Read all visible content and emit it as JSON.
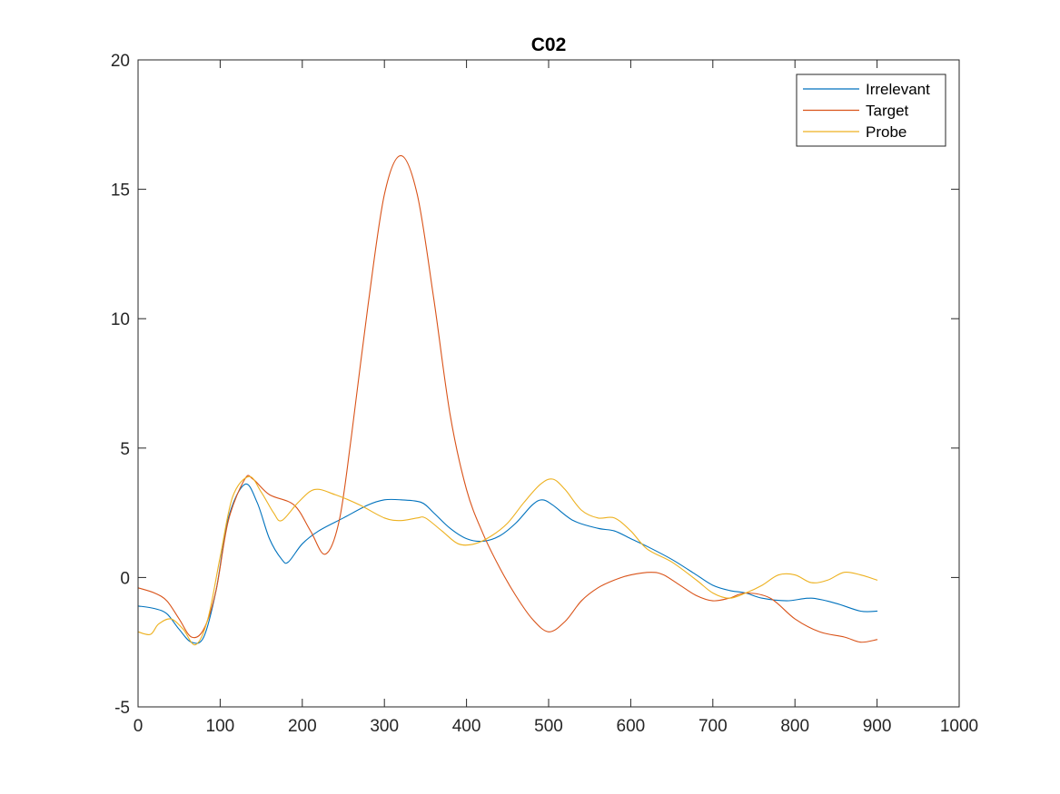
{
  "chart_data": {
    "type": "line",
    "title": "C02",
    "xlabel": "",
    "ylabel": "",
    "xlim": [
      0,
      1000
    ],
    "ylim": [
      -5,
      20
    ],
    "xticks": [
      0,
      100,
      200,
      300,
      400,
      500,
      600,
      700,
      800,
      900,
      1000
    ],
    "yticks": [
      -5,
      0,
      5,
      10,
      15,
      20
    ],
    "grid": false,
    "legend_position": "top-right",
    "series": [
      {
        "name": "Irrelevant",
        "color": "#0072BD",
        "x": [
          0,
          20,
          35,
          50,
          65,
          80,
          95,
          110,
          130,
          145,
          160,
          175,
          183,
          200,
          220,
          250,
          280,
          300,
          320,
          345,
          360,
          380,
          400,
          420,
          440,
          460,
          480,
          492,
          505,
          530,
          560,
          580,
          600,
          620,
          650,
          680,
          700,
          720,
          740,
          760,
          790,
          820,
          850,
          880,
          900
        ],
        "y": [
          -1.1,
          -1.2,
          -1.4,
          -2.0,
          -2.5,
          -2.3,
          -0.5,
          2.3,
          3.6,
          2.9,
          1.5,
          0.7,
          0.6,
          1.3,
          1.8,
          2.3,
          2.8,
          3.0,
          3.0,
          2.9,
          2.5,
          1.9,
          1.5,
          1.4,
          1.6,
          2.1,
          2.8,
          3.0,
          2.8,
          2.2,
          1.9,
          1.8,
          1.5,
          1.2,
          0.7,
          0.1,
          -0.3,
          -0.5,
          -0.6,
          -0.8,
          -0.9,
          -0.8,
          -1.0,
          -1.3,
          -1.3
        ]
      },
      {
        "name": "Target",
        "color": "#D95319",
        "x": [
          0,
          20,
          35,
          50,
          65,
          80,
          95,
          110,
          130,
          140,
          160,
          190,
          210,
          228,
          245,
          260,
          280,
          300,
          320,
          340,
          360,
          380,
          400,
          420,
          440,
          460,
          480,
          500,
          520,
          540,
          560,
          580,
          600,
          625,
          640,
          660,
          680,
          700,
          720,
          740,
          770,
          800,
          830,
          860,
          880,
          900
        ],
        "y": [
          -0.4,
          -0.6,
          -0.9,
          -1.6,
          -2.3,
          -2.0,
          -0.5,
          2.2,
          3.8,
          3.8,
          3.2,
          2.8,
          1.8,
          0.9,
          2.2,
          5.5,
          10.5,
          14.8,
          16.3,
          14.8,
          10.8,
          6.3,
          3.4,
          1.7,
          0.4,
          -0.7,
          -1.6,
          -2.1,
          -1.7,
          -0.9,
          -0.4,
          -0.1,
          0.1,
          0.2,
          0.1,
          -0.3,
          -0.7,
          -0.9,
          -0.8,
          -0.6,
          -0.8,
          -1.6,
          -2.1,
          -2.3,
          -2.5,
          -2.4
        ]
      },
      {
        "name": "Probe",
        "color": "#EDB120",
        "x": [
          0,
          15,
          25,
          40,
          55,
          70,
          85,
          100,
          115,
          135,
          150,
          165,
          175,
          195,
          215,
          240,
          270,
          300,
          320,
          340,
          350,
          370,
          390,
          410,
          430,
          450,
          470,
          490,
          505,
          520,
          540,
          560,
          580,
          600,
          620,
          650,
          680,
          700,
          720,
          740,
          760,
          780,
          800,
          820,
          840,
          860,
          880,
          900
        ],
        "y": [
          -2.1,
          -2.2,
          -1.8,
          -1.6,
          -2.0,
          -2.6,
          -1.6,
          0.8,
          3.1,
          3.9,
          3.3,
          2.5,
          2.2,
          2.9,
          3.4,
          3.2,
          2.8,
          2.3,
          2.2,
          2.3,
          2.3,
          1.8,
          1.3,
          1.3,
          1.6,
          2.1,
          2.9,
          3.6,
          3.8,
          3.4,
          2.6,
          2.3,
          2.3,
          1.8,
          1.1,
          0.6,
          -0.1,
          -0.6,
          -0.8,
          -0.6,
          -0.3,
          0.1,
          0.1,
          -0.2,
          -0.1,
          0.2,
          0.1,
          -0.1
        ]
      }
    ]
  }
}
